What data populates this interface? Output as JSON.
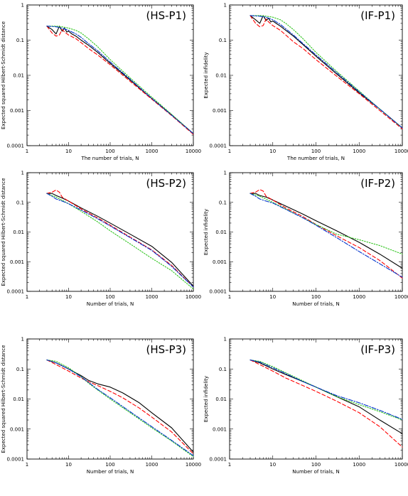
{
  "colors": {
    "black": "#000000",
    "red": "#ff0000",
    "green": "#2fc41e",
    "blue": "#0033cc",
    "purple": "#a000ff"
  },
  "chart_data": [
    {
      "type": "line",
      "title": "(HS-P1)",
      "xlabel": "The number of trials, N",
      "ylabel": "Expected squared Hilbert-Schmidt distance",
      "xscale": "log",
      "yscale": "log",
      "xlim": [
        1,
        10000
      ],
      "ylim": [
        0.0001,
        1
      ],
      "xticks": [
        "1",
        "10",
        "100",
        "1000",
        "10000"
      ],
      "yticks": [
        "1",
        "0.1",
        "0.01",
        "0.001",
        "0.0001"
      ],
      "series": [
        {
          "color": "#000000",
          "style": "solid",
          "x": [
            3,
            4,
            5,
            6,
            7,
            8,
            9,
            10,
            12,
            15,
            20,
            30,
            50,
            100,
            300,
            1000,
            3000,
            10000
          ],
          "y": [
            0.25,
            0.2,
            0.15,
            0.25,
            0.18,
            0.22,
            0.17,
            0.18,
            0.15,
            0.13,
            0.1,
            0.072,
            0.045,
            0.022,
            0.0074,
            0.0022,
            0.00075,
            0.00022
          ]
        },
        {
          "color": "#ff0000",
          "style": "dashed",
          "x": [
            3,
            4,
            5,
            6,
            7,
            8,
            10,
            15,
            20,
            30,
            50,
            100,
            300,
            1000,
            3000,
            10000
          ],
          "y": [
            0.25,
            0.16,
            0.13,
            0.14,
            0.2,
            0.17,
            0.14,
            0.11,
            0.085,
            0.058,
            0.038,
            0.02,
            0.0068,
            0.0021,
            0.00072,
            0.00021
          ]
        },
        {
          "color": "#2fc41e",
          "style": "dotted",
          "x": [
            3,
            5,
            7,
            10,
            15,
            20,
            30,
            50,
            100,
            300,
            1000,
            3000,
            10000
          ],
          "y": [
            0.25,
            0.25,
            0.24,
            0.22,
            0.19,
            0.16,
            0.11,
            0.065,
            0.028,
            0.0085,
            0.0024,
            0.00078,
            0.00022
          ]
        },
        {
          "color": "#0033cc",
          "style": "dashdot",
          "x": [
            3,
            5,
            7,
            10,
            15,
            20,
            30,
            50,
            100,
            300,
            1000,
            3000,
            10000
          ],
          "y": [
            0.25,
            0.24,
            0.22,
            0.19,
            0.15,
            0.12,
            0.08,
            0.05,
            0.024,
            0.0078,
            0.0022,
            0.00074,
            0.00022
          ]
        }
      ]
    },
    {
      "type": "line",
      "title": "(IF-P1)",
      "xlabel": "The number of trials, N",
      "ylabel": "Expected infidelity",
      "xscale": "log",
      "yscale": "log",
      "xlim": [
        1,
        10000
      ],
      "ylim": [
        0.0001,
        1
      ],
      "xticks": [
        "1",
        "10",
        "100",
        "1000",
        "10000"
      ],
      "yticks": [
        "1",
        "0.1",
        "0.01",
        "0.001",
        "0.0001"
      ],
      "series": [
        {
          "color": "#000000",
          "style": "solid",
          "x": [
            3,
            4,
            5,
            6,
            7,
            8,
            9,
            10,
            12,
            15,
            20,
            30,
            50,
            100,
            300,
            1000,
            3000,
            10000
          ],
          "y": [
            0.5,
            0.38,
            0.3,
            0.5,
            0.36,
            0.42,
            0.33,
            0.35,
            0.3,
            0.25,
            0.19,
            0.13,
            0.075,
            0.035,
            0.011,
            0.0032,
            0.0011,
            0.00032
          ]
        },
        {
          "color": "#ff0000",
          "style": "dashed",
          "x": [
            3,
            4,
            5,
            6,
            7,
            8,
            10,
            15,
            20,
            30,
            50,
            100,
            300,
            1000,
            3000,
            10000
          ],
          "y": [
            0.5,
            0.3,
            0.24,
            0.26,
            0.4,
            0.33,
            0.26,
            0.19,
            0.14,
            0.09,
            0.058,
            0.028,
            0.0095,
            0.003,
            0.001,
            0.0003
          ]
        },
        {
          "color": "#2fc41e",
          "style": "dotted",
          "x": [
            3,
            5,
            7,
            10,
            15,
            20,
            30,
            50,
            100,
            300,
            1000,
            3000,
            10000
          ],
          "y": [
            0.5,
            0.5,
            0.48,
            0.45,
            0.38,
            0.3,
            0.2,
            0.11,
            0.045,
            0.013,
            0.0036,
            0.0011,
            0.00032
          ]
        },
        {
          "color": "#0033cc",
          "style": "dashdot",
          "x": [
            3,
            5,
            7,
            10,
            15,
            20,
            30,
            50,
            100,
            300,
            1000,
            3000,
            10000
          ],
          "y": [
            0.5,
            0.48,
            0.45,
            0.38,
            0.28,
            0.21,
            0.14,
            0.08,
            0.038,
            0.012,
            0.0034,
            0.0011,
            0.00032
          ]
        }
      ]
    },
    {
      "type": "line",
      "title": "(HS-P2)",
      "xlabel": "Number of trials, N",
      "ylabel": "Expected squared Hilbert-Schmidt distance",
      "xscale": "log",
      "yscale": "log",
      "xlim": [
        1,
        10000
      ],
      "ylim": [
        0.0001,
        1
      ],
      "xticks": [
        "1",
        "10",
        "100",
        "1000",
        "10000"
      ],
      "yticks": [
        "1",
        "0.1",
        "0.01",
        "0.001",
        "0.0001"
      ],
      "series": [
        {
          "color": "#000000",
          "style": "solid",
          "x": [
            3,
            4,
            5,
            7,
            10,
            20,
            50,
            100,
            300,
            1000,
            3000,
            10000
          ],
          "y": [
            0.2,
            0.2,
            0.17,
            0.14,
            0.11,
            0.065,
            0.034,
            0.02,
            0.0085,
            0.0033,
            0.00095,
            0.00015
          ]
        },
        {
          "color": "#ff0000",
          "style": "dashed",
          "x": [
            3,
            4,
            5,
            6,
            7,
            10,
            20,
            50,
            100,
            300,
            1000,
            3000,
            10000
          ],
          "y": [
            0.2,
            0.22,
            0.26,
            0.22,
            0.15,
            0.11,
            0.06,
            0.03,
            0.017,
            0.0068,
            0.0025,
            0.00075,
            0.00014
          ]
        },
        {
          "color": "#2fc41e",
          "style": "dotted",
          "x": [
            3,
            5,
            10,
            20,
            50,
            100,
            300,
            1000,
            3000,
            10000
          ],
          "y": [
            0.2,
            0.15,
            0.09,
            0.05,
            0.022,
            0.011,
            0.004,
            0.0013,
            0.0005,
            0.00012
          ]
        },
        {
          "color": "#0033cc",
          "style": "dashdot",
          "x": [
            3,
            4,
            5,
            7,
            10,
            20,
            50,
            100,
            300,
            1000,
            3000,
            10000
          ],
          "y": [
            0.2,
            0.16,
            0.13,
            0.11,
            0.09,
            0.055,
            0.028,
            0.016,
            0.0065,
            0.0024,
            0.0007,
            0.00014
          ]
        }
      ]
    },
    {
      "type": "line",
      "title": "(IF-P2)",
      "xlabel": "Number of trials, N",
      "ylabel": "Expected infidelity",
      "xscale": "log",
      "yscale": "log",
      "xlim": [
        1,
        10000
      ],
      "ylim": [
        0.0001,
        1
      ],
      "xticks": [
        "1",
        "10",
        "100",
        "1000",
        "10000"
      ],
      "yticks": [
        "1",
        "0.1",
        "0.01",
        "0.001",
        "0.0001"
      ],
      "series": [
        {
          "color": "#000000",
          "style": "solid",
          "x": [
            3,
            4,
            5,
            7,
            10,
            20,
            50,
            100,
            300,
            1000,
            3000,
            10000
          ],
          "y": [
            0.2,
            0.2,
            0.17,
            0.15,
            0.12,
            0.075,
            0.04,
            0.024,
            0.011,
            0.0045,
            0.0018,
            0.0006
          ]
        },
        {
          "color": "#ff0000",
          "style": "dashed",
          "x": [
            3,
            4,
            5,
            6,
            7,
            10,
            20,
            50,
            100,
            300,
            1000,
            3000,
            10000
          ],
          "y": [
            0.2,
            0.22,
            0.27,
            0.24,
            0.16,
            0.12,
            0.065,
            0.033,
            0.018,
            0.0075,
            0.003,
            0.0011,
            0.00028
          ]
        },
        {
          "color": "#2fc41e",
          "style": "dotted",
          "x": [
            3,
            5,
            10,
            20,
            50,
            100,
            300,
            1000,
            3000,
            10000
          ],
          "y": [
            0.2,
            0.16,
            0.1,
            0.06,
            0.03,
            0.018,
            0.0085,
            0.0055,
            0.0035,
            0.0018
          ]
        },
        {
          "color": "#0033cc",
          "style": "dashdot",
          "x": [
            3,
            4,
            5,
            7,
            10,
            20,
            50,
            100,
            300,
            1000,
            3000,
            10000
          ],
          "y": [
            0.2,
            0.16,
            0.13,
            0.11,
            0.095,
            0.058,
            0.03,
            0.017,
            0.0065,
            0.0022,
            0.00085,
            0.0003
          ]
        }
      ]
    },
    {
      "type": "line",
      "title": "(HS-P3)",
      "xlabel": "Number of trials, N",
      "ylabel": "Expected squared Hilbert-Schmidt distance",
      "xscale": "log",
      "yscale": "log",
      "xlim": [
        1,
        10000
      ],
      "ylim": [
        0.0001,
        1
      ],
      "xticks": [
        "1",
        "10",
        "100",
        "1000",
        "10000"
      ],
      "yticks": [
        "1",
        "0.1",
        "0.01",
        "0.001",
        "0.0001"
      ],
      "series": [
        {
          "color": "#000000",
          "style": "solid",
          "x": [
            3,
            5,
            10,
            20,
            30,
            50,
            100,
            200,
            500,
            1000,
            3000,
            10000
          ],
          "y": [
            0.2,
            0.16,
            0.1,
            0.06,
            0.042,
            0.032,
            0.025,
            0.016,
            0.0075,
            0.0035,
            0.0011,
            0.00017
          ]
        },
        {
          "color": "#ff0000",
          "style": "dashed",
          "x": [
            3,
            5,
            10,
            20,
            30,
            50,
            100,
            200,
            500,
            1000,
            3000,
            10000
          ],
          "y": [
            0.2,
            0.14,
            0.085,
            0.05,
            0.038,
            0.028,
            0.018,
            0.011,
            0.005,
            0.0025,
            0.0008,
            0.00015
          ]
        },
        {
          "color": "#2fc41e",
          "style": "dotted",
          "x": [
            3,
            5,
            10,
            20,
            30,
            50,
            100,
            300,
            1000,
            3000,
            10000
          ],
          "y": [
            0.2,
            0.18,
            0.11,
            0.055,
            0.034,
            0.02,
            0.01,
            0.0035,
            0.0011,
            0.0004,
            0.00012
          ]
        },
        {
          "color": "#0033cc",
          "style": "dashdot",
          "x": [
            3,
            5,
            10,
            20,
            30,
            50,
            100,
            300,
            1000,
            3000,
            10000
          ],
          "y": [
            0.2,
            0.16,
            0.1,
            0.055,
            0.036,
            0.021,
            0.011,
            0.0038,
            0.0012,
            0.00042,
            0.00013
          ]
        }
      ]
    },
    {
      "type": "line",
      "title": "(IF-P3)",
      "xlabel": "Number of trials, N",
      "ylabel": "Expected infidelity",
      "xscale": "log",
      "yscale": "log",
      "xlim": [
        1,
        10000
      ],
      "ylim": [
        0.0001,
        1
      ],
      "xticks": [
        "1",
        "10",
        "100",
        "1000",
        "10000"
      ],
      "yticks": [
        "1",
        "0.1",
        "0.01",
        "0.001",
        "0.0001"
      ],
      "series": [
        {
          "color": "#000000",
          "style": "solid",
          "x": [
            3,
            5,
            10,
            20,
            50,
            100,
            300,
            1000,
            3000,
            10000
          ],
          "y": [
            0.2,
            0.16,
            0.1,
            0.065,
            0.038,
            0.025,
            0.012,
            0.0055,
            0.002,
            0.0007
          ]
        },
        {
          "color": "#ff0000",
          "style": "dashed",
          "x": [
            3,
            5,
            10,
            20,
            50,
            100,
            300,
            1000,
            3000,
            10000
          ],
          "y": [
            0.2,
            0.14,
            0.085,
            0.05,
            0.028,
            0.018,
            0.0085,
            0.0035,
            0.0012,
            0.00025
          ]
        },
        {
          "color": "#2fc41e",
          "style": "dotted",
          "x": [
            3,
            5,
            10,
            20,
            50,
            100,
            300,
            1000,
            3000,
            10000
          ],
          "y": [
            0.2,
            0.18,
            0.12,
            0.075,
            0.04,
            0.025,
            0.012,
            0.0065,
            0.0038,
            0.002
          ]
        },
        {
          "color": "#0033cc",
          "style": "dashdot",
          "x": [
            3,
            5,
            10,
            20,
            50,
            100,
            300,
            1000,
            3000,
            10000
          ],
          "y": [
            0.2,
            0.17,
            0.11,
            0.07,
            0.038,
            0.025,
            0.013,
            0.0075,
            0.0042,
            0.0021
          ]
        }
      ]
    }
  ]
}
